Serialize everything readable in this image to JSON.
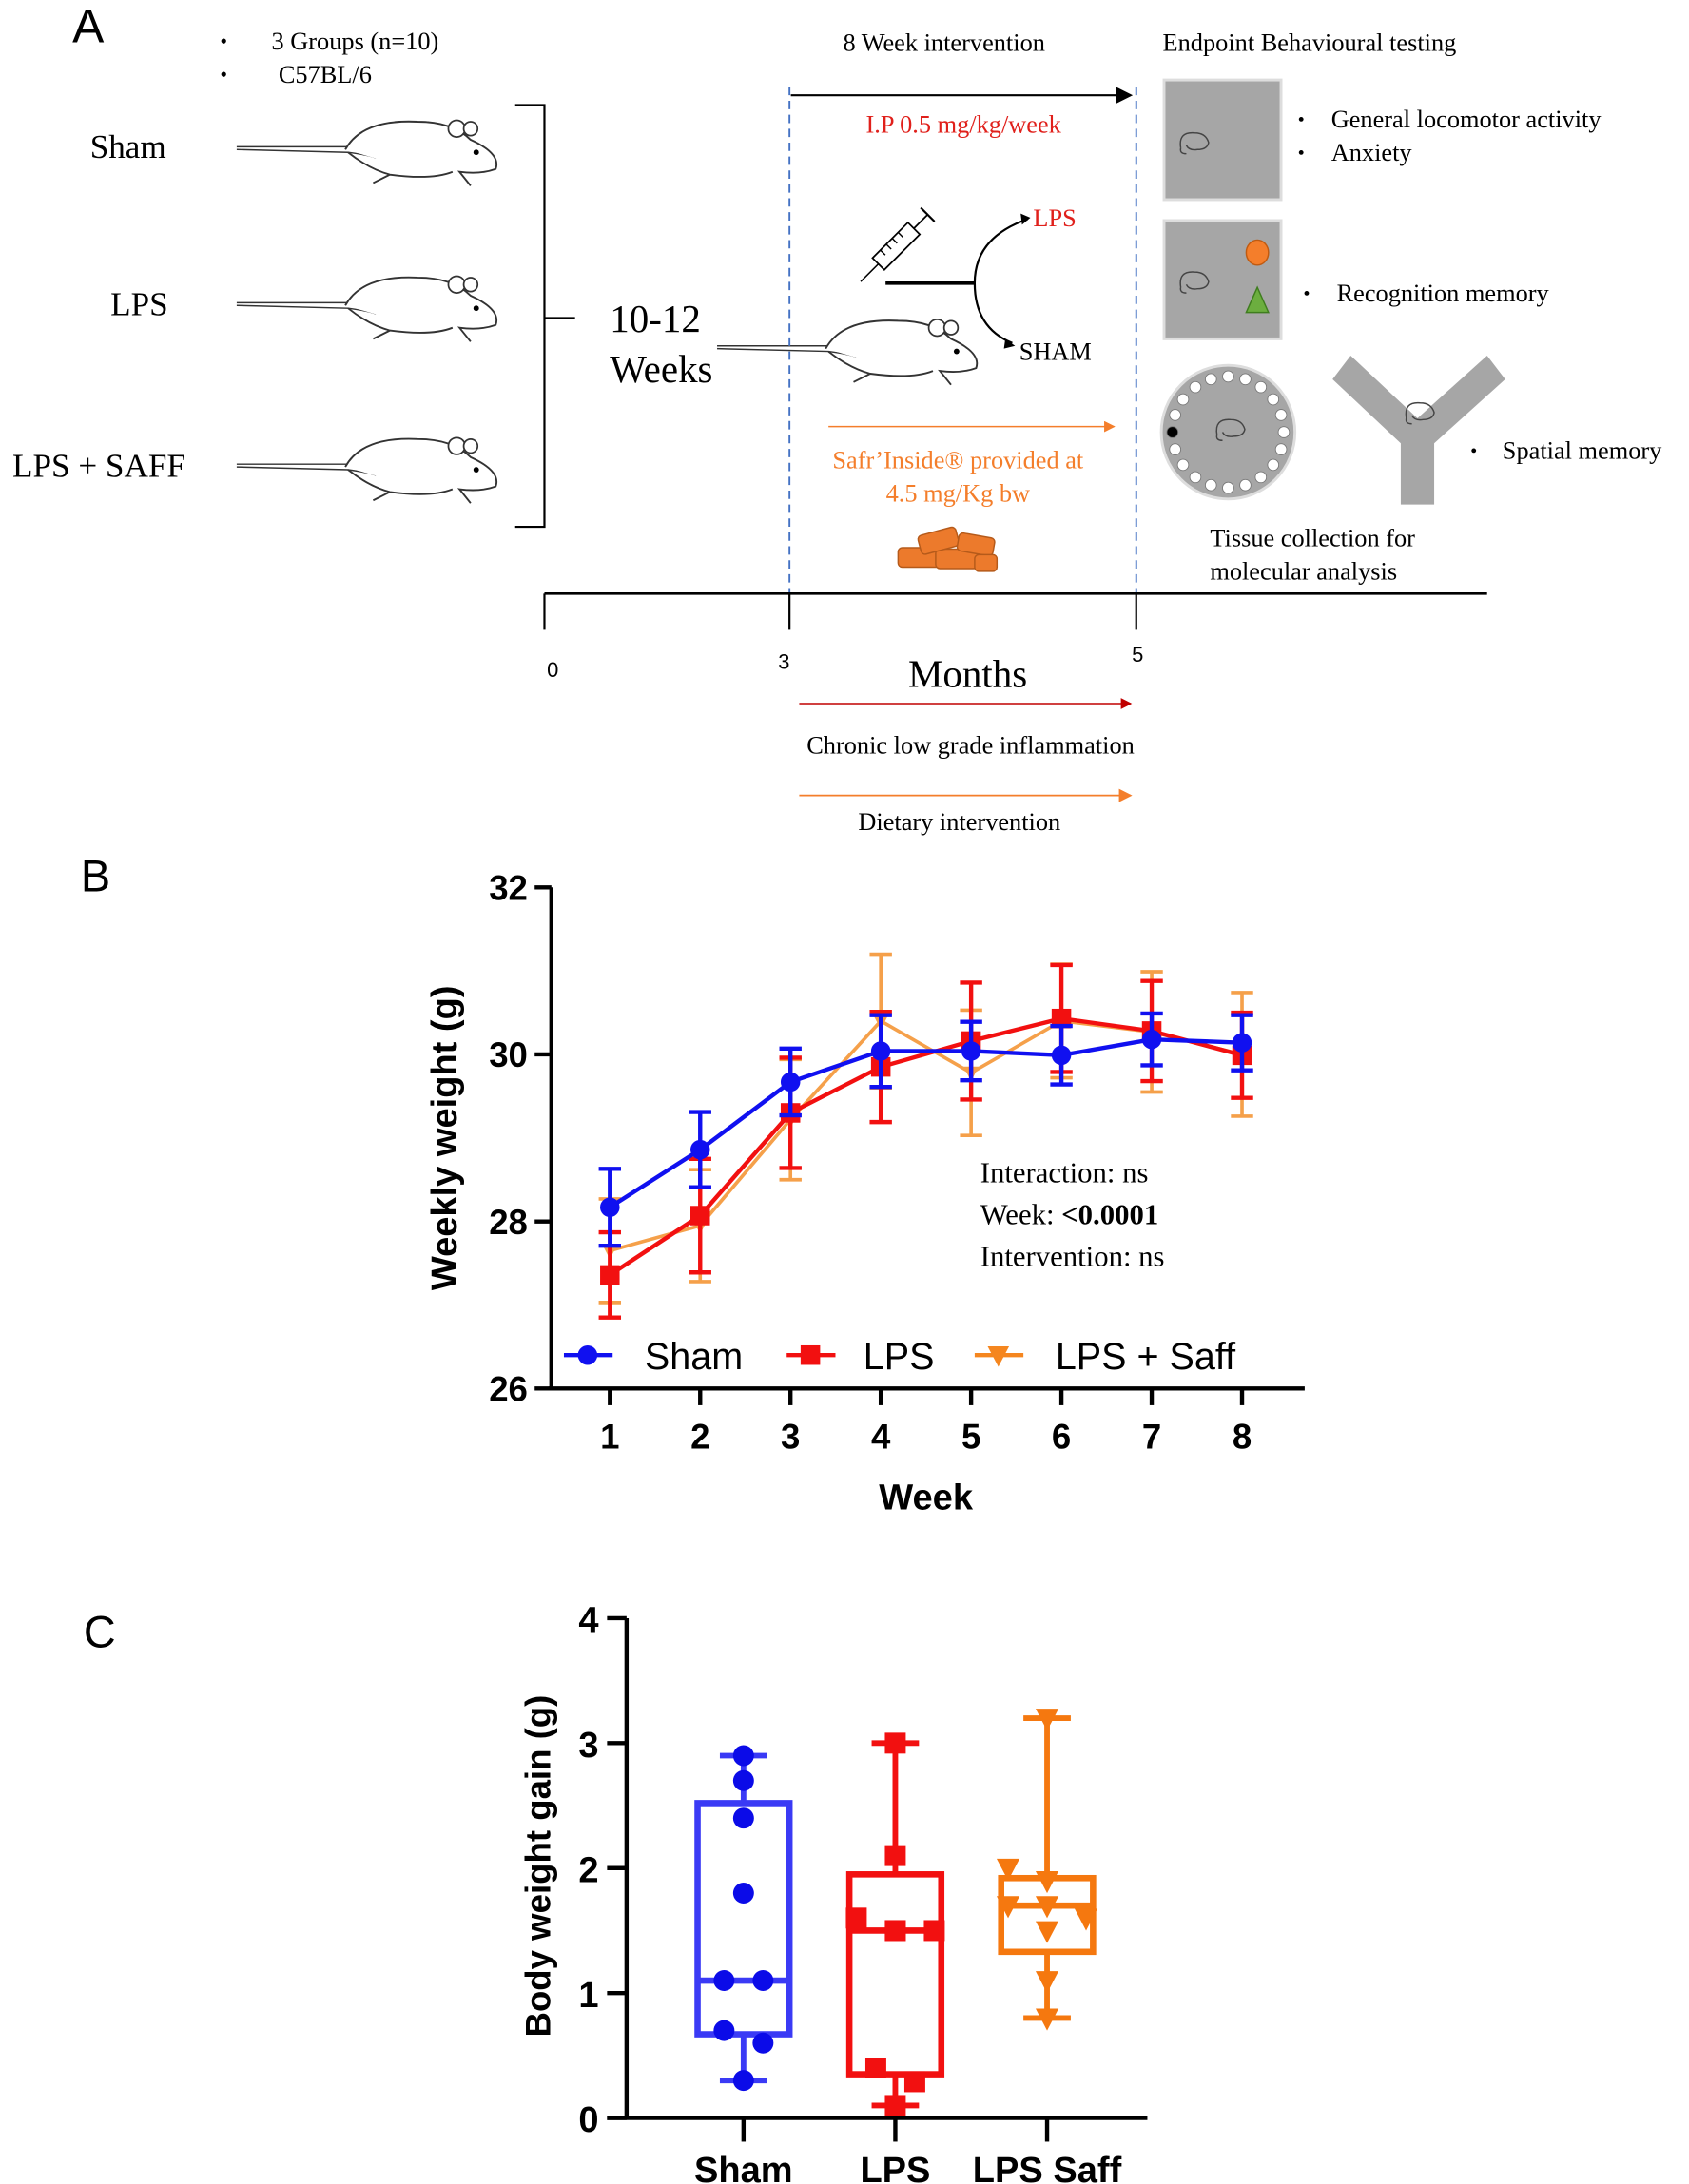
{
  "panel_a": {
    "label": "A",
    "bullets": [
      "3 Groups (n=10)",
      "C57BL/6"
    ],
    "groups": [
      "Sham",
      "LPS",
      "LPS + SAFF"
    ],
    "age_line1": "10-12",
    "age_line2": "Weeks",
    "intervention_title": "8 Week intervention",
    "ip_dose": "I.P 0.5 mg/kg/week",
    "branch_lps": "LPS",
    "branch_sham": "SHAM",
    "saff_line1": "Safr’Inside® provided at",
    "saff_line2": "4.5 mg/Kg bw",
    "endpoint_title": "Endpoint Behavioural testing",
    "tests": [
      "General locomotor activity",
      "Anxiety",
      "Recognition memory",
      "Spatial memory"
    ],
    "tissue_line1": "Tissue collection for",
    "tissue_line2": "molecular analysis",
    "timeline_ticks": [
      "0",
      "3",
      "5"
    ],
    "timeline_unit": "Months",
    "phase_inflammation": "Chronic low grade inflammation",
    "phase_diet": "Dietary intervention",
    "colors": {
      "red": "#e0201b",
      "orange": "#f47e2b",
      "gray": "#a6a6a6",
      "green": "#6cae3f",
      "dashed": "#4472c4"
    }
  },
  "panel_b": {
    "label": "B"
  },
  "panel_c": {
    "label": "C"
  },
  "chart_data": [
    {
      "type": "line",
      "xlabel": "Week",
      "ylabel": "Weekly weight (g)",
      "x": [
        1,
        2,
        3,
        4,
        5,
        6,
        7,
        8
      ],
      "xticks": [
        "1",
        "2",
        "3",
        "4",
        "5",
        "6",
        "7",
        "8"
      ],
      "ylim": [
        26,
        32
      ],
      "yticks": [
        "26",
        "28",
        "30",
        "32"
      ],
      "legend_position": "bottom",
      "annotations": {
        "interaction": "Interaction: ns",
        "week_label": "Week: ",
        "week_value": "<0.0001",
        "intervention": "Intervention: ns"
      },
      "series": [
        {
          "name": "Sham",
          "color": "#1010f0",
          "marker": "circle",
          "values": [
            28.17,
            28.86,
            29.67,
            30.04,
            30.04,
            29.99,
            30.18,
            30.14
          ],
          "error": [
            0.46,
            0.45,
            0.4,
            0.43,
            0.35,
            0.35,
            0.31,
            0.33
          ]
        },
        {
          "name": "LPS",
          "color": "#f21010",
          "marker": "square",
          "values": [
            27.36,
            28.07,
            29.3,
            29.85,
            30.16,
            30.43,
            30.28,
            29.99
          ],
          "error": [
            0.51,
            0.68,
            0.66,
            0.66,
            0.7,
            0.64,
            0.6,
            0.51
          ]
        },
        {
          "name": "LPS + Saff",
          "color": "#f5a04a",
          "marker": "triangle-down",
          "values": [
            27.65,
            27.95,
            29.22,
            30.4,
            29.78,
            30.4,
            30.27,
            30.0
          ],
          "error": [
            0.62,
            0.67,
            0.72,
            0.8,
            0.75,
            0.68,
            0.72,
            0.74
          ]
        }
      ]
    },
    {
      "type": "box",
      "ylabel": "Body weight gain (g)",
      "categories": [
        "Sham",
        "LPS",
        "LPS Saff"
      ],
      "ylim": [
        0,
        4
      ],
      "yticks": [
        "0",
        "1",
        "2",
        "3",
        "4"
      ],
      "series": [
        {
          "name": "Sham",
          "color": "#3a3af5",
          "marker": "circle",
          "box": {
            "min": 0.3,
            "q1": 0.67,
            "median": 1.1,
            "q3": 2.52,
            "max": 2.9
          },
          "points": [
            2.9,
            2.7,
            2.4,
            1.8,
            1.1,
            1.1,
            0.7,
            0.6,
            0.3
          ]
        },
        {
          "name": "LPS",
          "color": "#f21010",
          "marker": "square",
          "box": {
            "min": 0.1,
            "q1": 0.35,
            "median": 1.5,
            "q3": 1.95,
            "max": 3.0
          },
          "points": [
            3.0,
            2.1,
            1.6,
            1.5,
            1.5,
            1.5,
            0.4,
            0.29,
            0.1
          ]
        },
        {
          "name": "LPS Saff",
          "color": "#f5780f",
          "marker": "triangle-down",
          "box": {
            "min": 0.8,
            "q1": 1.33,
            "median": 1.7,
            "q3": 1.92,
            "max": 3.2
          },
          "points": [
            3.2,
            2.0,
            1.9,
            1.7,
            1.7,
            1.6,
            1.5,
            1.1,
            0.8
          ]
        }
      ]
    }
  ]
}
